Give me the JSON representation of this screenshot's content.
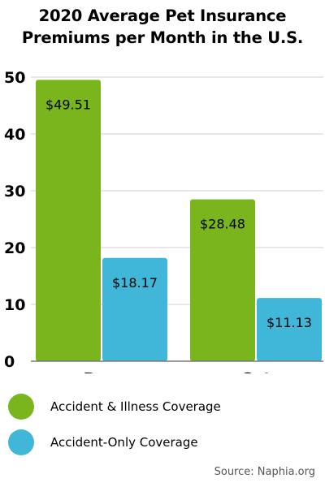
{
  "chart_data": {
    "type": "bar",
    "title_lines": [
      "2020 Average Pet Insurance",
      "Premiums per Month in the U.S."
    ],
    "categories": [
      "Dog",
      "Cat"
    ],
    "series": [
      {
        "name": "Accident & Illness Coverage",
        "values": [
          49.51,
          28.48
        ],
        "labels": [
          "$49.51",
          "$28.48"
        ],
        "color": "#7ab51d"
      },
      {
        "name": "Accident-Only Coverage",
        "values": [
          18.17,
          11.13
        ],
        "labels": [
          "$18.17",
          "$11.13"
        ],
        "color": "#40b7d9"
      }
    ],
    "yticks": [
      "0",
      "10",
      "20",
      "30",
      "40",
      "50"
    ],
    "ylim": [
      0,
      50
    ],
    "grid": true,
    "legend_position": "bottom"
  },
  "source": "Source: Naphia.org"
}
